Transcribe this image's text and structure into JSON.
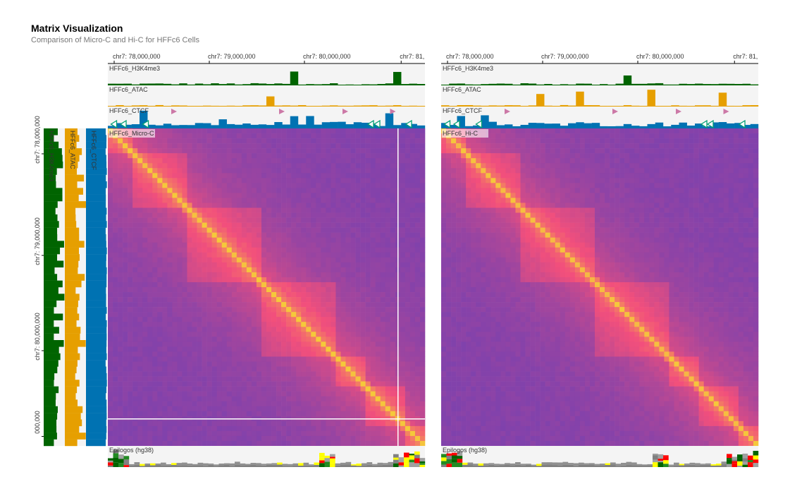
{
  "header": {
    "title": "Matrix Visualization",
    "subtitle": "Comparison of Micro-C and Hi-C for HFFc6 Cells"
  },
  "colors": {
    "h3k4me3": "#006400",
    "atac": "#e69f00",
    "ctcf": "#0072b2",
    "ctcf_motif_forward": "#cc79a7",
    "ctcf_motif_reverse": "#009e73",
    "track_background": "#f4f4f4",
    "heatmap_low": "#6a3fb5",
    "heatmap_mid": "#f24f7c",
    "heatmap_high": "#f5c93a"
  },
  "chart_data": [
    {
      "type": "heatmap",
      "name": "Micro-C",
      "matrix_label": "HFFc6_Micro-C",
      "x_ticks": [
        "chr7: 78,000,000",
        "chr7: 79,000,000",
        "chr7: 80,000,000",
        "chr7: 81,"
      ],
      "y_ticks": [
        "chr7: 78,000,000",
        "chr7: 79,000,000",
        "chr7: 80,000,000",
        "000,000"
      ],
      "tracks_top": [
        "HFFc6_H3K4me3",
        "HFFc6_ATAC",
        "HFFc6_CTCF"
      ],
      "tracks_left": [
        "HFFc6_H3K4me3",
        "HFFc6_ATAC",
        "HFFc6_CTCF"
      ],
      "bottom_track": "Epilogos (hg38)",
      "crosshair": true
    },
    {
      "type": "heatmap",
      "name": "Hi-C",
      "matrix_label": "HFFc6_Hi-C",
      "x_ticks": [
        "chr7: 78,000,000",
        "chr7: 79,000,000",
        "chr7: 80,000,000",
        "chr7: 81,"
      ],
      "tracks_top": [
        "HFFc6_H3K4me3",
        "HFFc6_ATAC",
        "HFFc6_CTCF"
      ],
      "bottom_track": "Epilogos (hg38)",
      "crosshair": false
    }
  ]
}
